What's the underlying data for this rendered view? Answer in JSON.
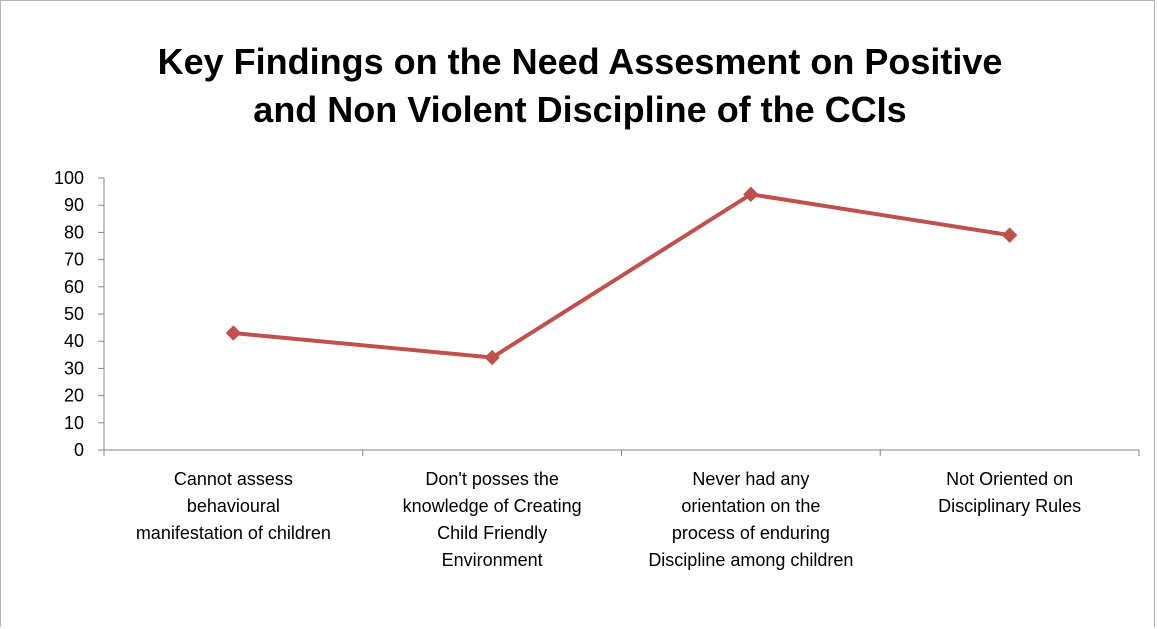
{
  "chart_data": {
    "type": "line",
    "title": "Key Findings on the Need Assesment on Positive and Non Violent Discipline of the CCIs",
    "title_lines": [
      "Key Findings on the Need Assesment on Positive",
      "and Non Violent Discipline of the CCIs"
    ],
    "categories": [
      "Cannot assess behavioural manifestation of children",
      "Don't posses the knowledge of Creating Child Friendly Environment",
      "Never had any orientation on the process of enduring Discipline among children",
      "Not Oriented on Disciplinary Rules"
    ],
    "category_lines": [
      [
        "Cannot assess",
        "behavioural",
        "manifestation of children"
      ],
      [
        "Don't posses the",
        "knowledge of Creating",
        "Child Friendly",
        "Environment"
      ],
      [
        "Never had any",
        "orientation on the",
        "process of enduring",
        "Discipline among children"
      ],
      [
        "Not Oriented on",
        "Disciplinary Rules"
      ]
    ],
    "series": [
      {
        "values": [
          43,
          34,
          94,
          79
        ],
        "color": "#c0504d",
        "marker": "diamond"
      }
    ],
    "ylim": [
      0,
      100
    ],
    "yticks": [
      0,
      10,
      20,
      30,
      40,
      50,
      60,
      70,
      80,
      90,
      100
    ],
    "xlabel": "",
    "ylabel": "",
    "grid": false,
    "legend": "none"
  }
}
